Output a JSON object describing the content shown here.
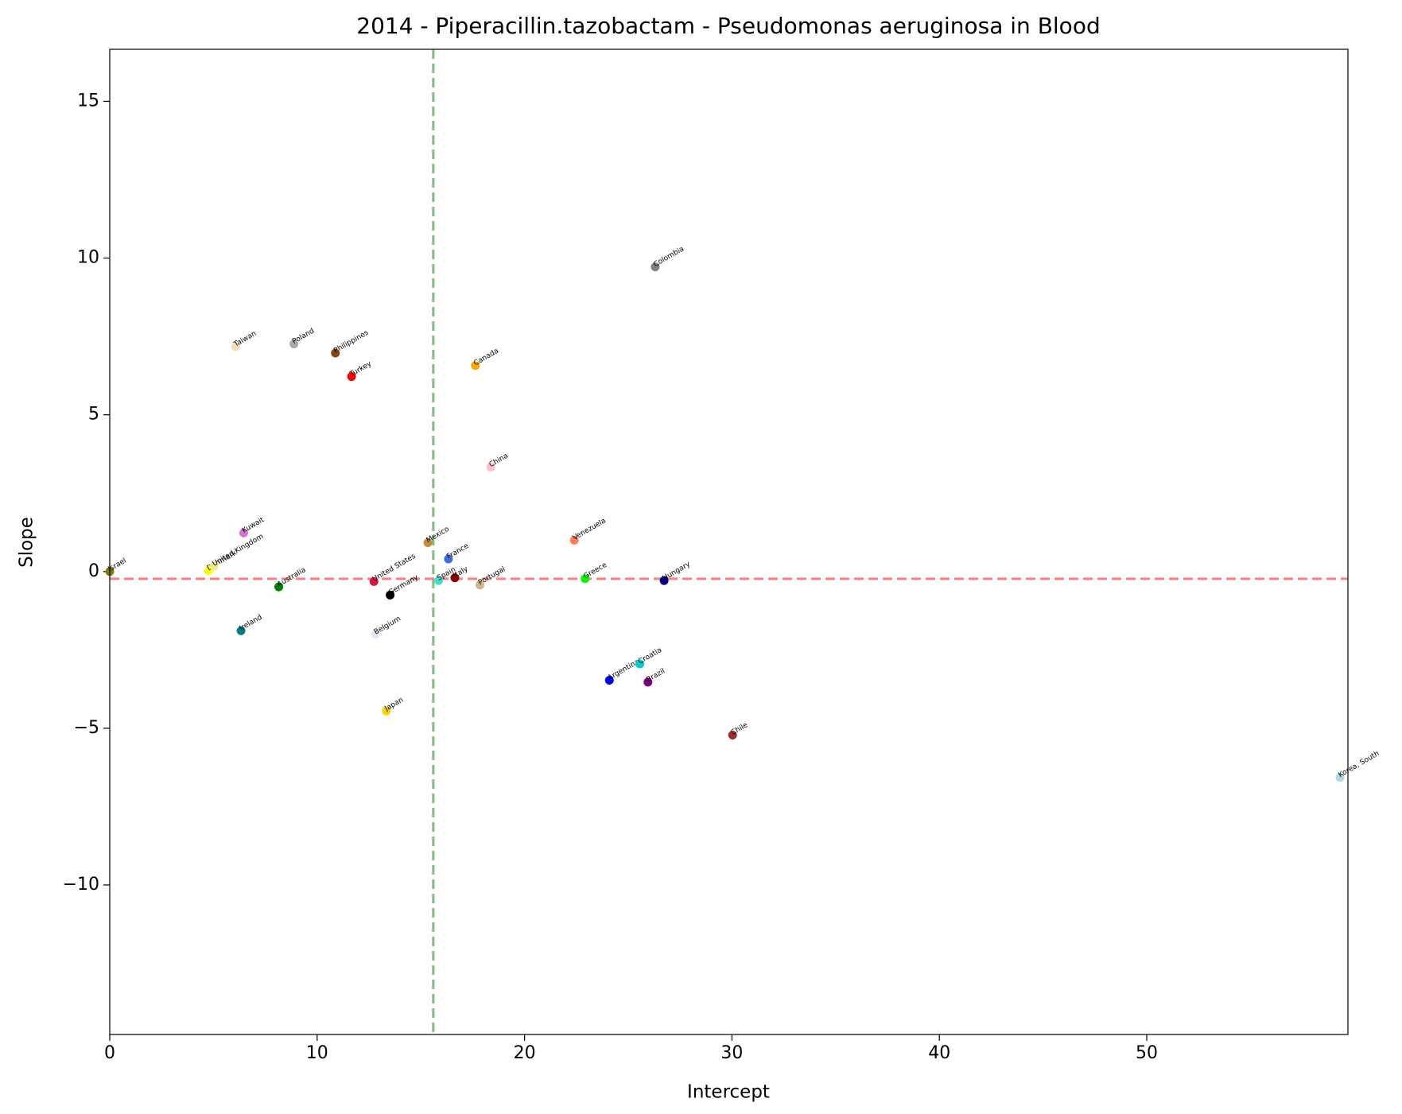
{
  "chart_data": {
    "type": "scatter",
    "title": "2014 - Piperacillin.tazobactam - Pseudomonas aeruginosa in Blood",
    "x_label": "Intercept",
    "y_label": "Slope",
    "xlim": [
      0,
      59.7
    ],
    "ylim": [
      -14.77,
      16.66
    ],
    "xticks": [
      0,
      10,
      20,
      30,
      40,
      50
    ],
    "yticks": [
      {
        "value": -10,
        "label": "−10"
      },
      {
        "value": -5,
        "label": "−5"
      },
      0,
      5,
      10,
      15
    ],
    "vline": {
      "value": 15.6,
      "color": "#77c277"
    },
    "hline": {
      "value": -0.23,
      "color": "#ff7f7f"
    },
    "points": [
      {
        "name": "Israel",
        "color": "olive",
        "x": 0.0,
        "y": 0.0
      },
      {
        "name": "Denmark",
        "color": "yellow",
        "x": 4.77,
        "y": 0.03
      },
      {
        "name": "United Kingdom",
        "color": "khaki",
        "x": 5.03,
        "y": 0.17
      },
      {
        "name": "Taiwan",
        "color": "wheat",
        "x": 6.07,
        "y": 7.17
      },
      {
        "name": "Poland",
        "color": "darkgray",
        "x": 8.88,
        "y": 7.26
      },
      {
        "name": "Philippines",
        "color": "saddlebrown",
        "x": 10.88,
        "y": 6.97
      },
      {
        "name": "Turkey",
        "color": "red",
        "x": 11.66,
        "y": 6.22
      },
      {
        "name": "Canada",
        "color": "orange",
        "x": 17.63,
        "y": 6.57
      },
      {
        "name": "Colombia",
        "color": "gray",
        "x": 26.3,
        "y": 9.72
      },
      {
        "name": "China",
        "color": "pink",
        "x": 18.37,
        "y": 3.33
      },
      {
        "name": "Kuwait",
        "color": "orchid",
        "x": 6.46,
        "y": 1.23
      },
      {
        "name": "Australia",
        "color": "green",
        "x": 8.15,
        "y": -0.49
      },
      {
        "name": "Ireland",
        "color": "teal",
        "x": 6.33,
        "y": -1.89
      },
      {
        "name": "United States",
        "color": "crimson",
        "x": 12.74,
        "y": -0.32
      },
      {
        "name": "Germany",
        "color": "black",
        "x": 13.52,
        "y": -0.75
      },
      {
        "name": "Belgium",
        "color": "lavender",
        "x": 12.82,
        "y": -2.01
      },
      {
        "name": "Japan",
        "color": "gold",
        "x": 13.34,
        "y": -4.45
      },
      {
        "name": "Mexico",
        "color": "peru",
        "x": 15.34,
        "y": 0.92
      },
      {
        "name": "France",
        "color": "royalblue",
        "x": 16.33,
        "y": 0.4
      },
      {
        "name": "Spain",
        "color": "turquoise",
        "x": 15.86,
        "y": -0.29
      },
      {
        "name": "Italy",
        "color": "darkred",
        "x": 16.64,
        "y": -0.2
      },
      {
        "name": "Portugal",
        "color": "tan",
        "x": 17.85,
        "y": -0.43
      },
      {
        "name": "Venezuela",
        "color": "coral",
        "x": 22.4,
        "y": 1.0
      },
      {
        "name": "Greece",
        "color": "lime",
        "x": 22.92,
        "y": -0.23
      },
      {
        "name": "Hungary",
        "color": "navy",
        "x": 26.73,
        "y": -0.29
      },
      {
        "name": "Argentina",
        "color": "blue",
        "x": 24.09,
        "y": -3.47
      },
      {
        "name": "Croatia",
        "color": "darkturquoise",
        "x": 25.56,
        "y": -2.95
      },
      {
        "name": "Brazil",
        "color": "purple",
        "x": 25.95,
        "y": -3.53
      },
      {
        "name": "Chile",
        "color": "brown",
        "x": 30.03,
        "y": -5.22
      },
      {
        "name": "Korea, South",
        "color": "lightblue",
        "x": 59.32,
        "y": -6.57
      }
    ]
  }
}
